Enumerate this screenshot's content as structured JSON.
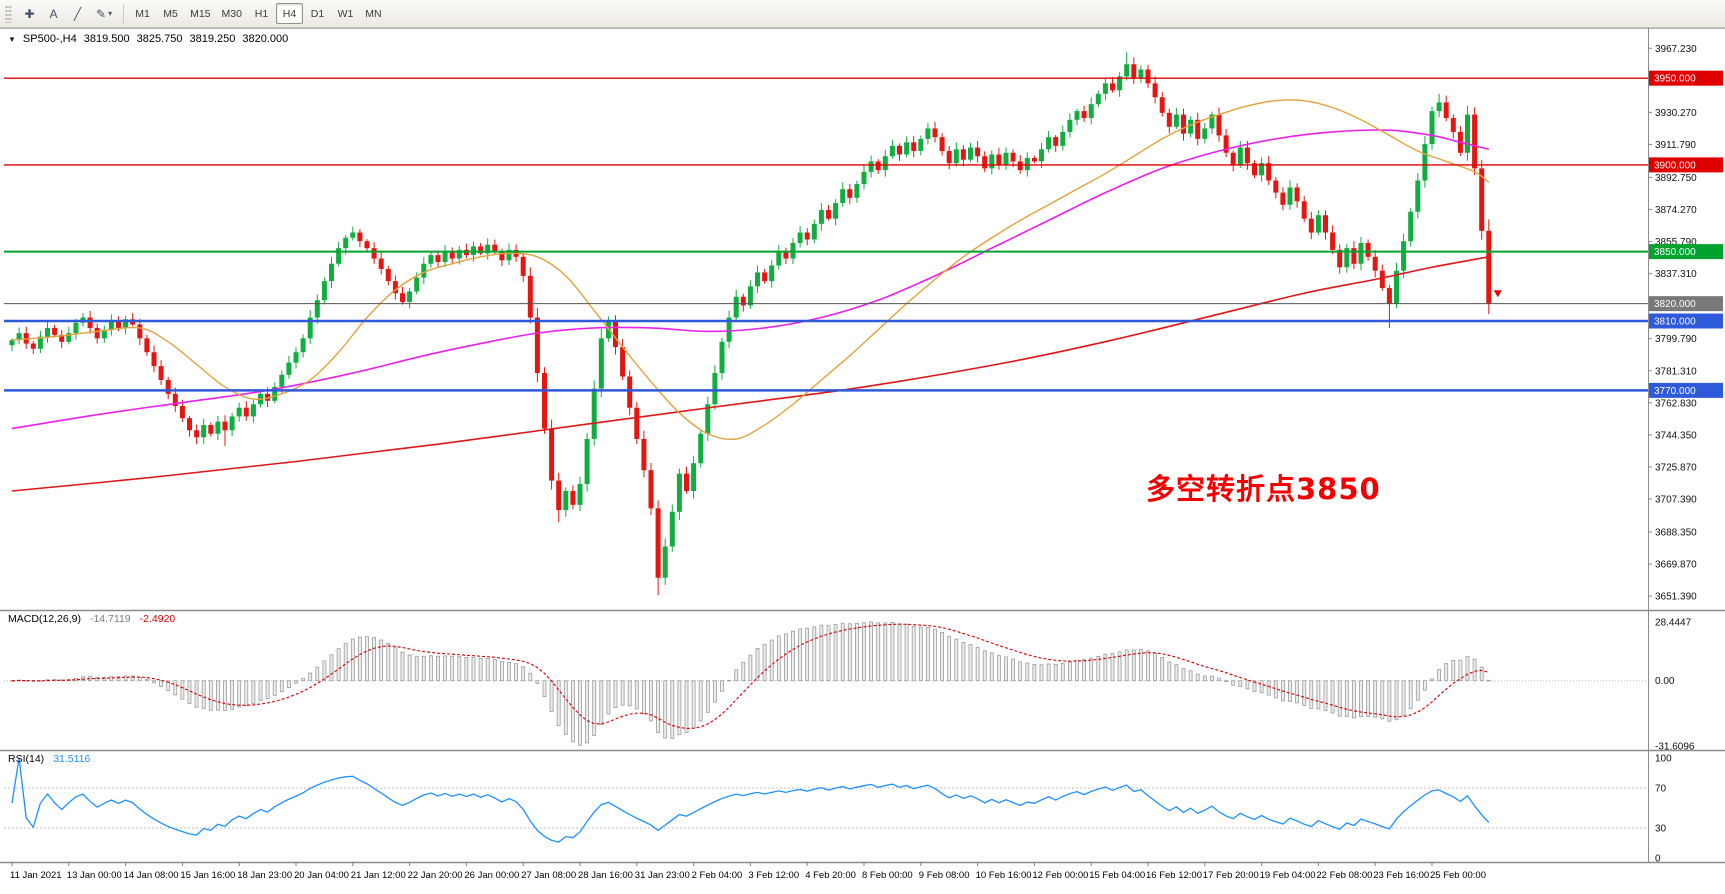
{
  "toolbar": {
    "tools": [
      {
        "glyph": "✚"
      },
      {
        "glyph": "A"
      },
      {
        "glyph": "╱"
      },
      {
        "glyph": "✎"
      }
    ],
    "caret": "▾",
    "timeframes": [
      "M1",
      "M5",
      "M15",
      "M30",
      "H1",
      "H4",
      "D1",
      "W1",
      "MN"
    ],
    "active_timeframe": "H4"
  },
  "chart": {
    "header": {
      "marker": "▼",
      "symbol": "SP500-,H4",
      "open": "3819.500",
      "high": "3825.750",
      "low": "3819.250",
      "close": "3820.000"
    },
    "annotation": {
      "text": "多空转折点3850",
      "color": "#f50000"
    }
  },
  "macd": {
    "name": "MACD(12,26,9)",
    "value_main": "-14.7119",
    "value_signal": "-2.4920",
    "axis_labels": [
      "28.4447",
      "0.00",
      "-31.6096"
    ],
    "axis_max": 28.4447,
    "axis_min": -31.6096,
    "fast": 12,
    "slow": 26,
    "signal": 9,
    "histogram_fill": "#ededed",
    "histogram_stroke": "#9b9b9b",
    "signal_color": "#d40000"
  },
  "rsi": {
    "name": "RSI(14)",
    "value": "31.5116",
    "period": 14,
    "line_color": "#1e90ff",
    "levels": [
      70,
      30
    ],
    "axis_labels": [
      "100",
      "70",
      "30",
      "0"
    ]
  },
  "chart_data": {
    "type": "candlestick",
    "symbol": "SP500-",
    "timeframe": "H4",
    "ohlc_current": {
      "open": 3819.5,
      "high": 3825.75,
      "low": 3819.25,
      "close": 3820.0
    },
    "ylim": [
      3648,
      3972
    ],
    "candle_up": "#0fae3e",
    "candle_down": "#e6150f",
    "first_open": 3796,
    "closes": [
      3799,
      3803,
      3797,
      3794,
      3801,
      3806,
      3802,
      3798,
      3803,
      3809,
      3812,
      3806,
      3800,
      3805,
      3810,
      3806,
      3811,
      3808,
      3800,
      3792,
      3784,
      3776,
      3768,
      3761,
      3754,
      3747,
      3743,
      3750,
      3745,
      3752,
      3747,
      3755,
      3760,
      3755,
      3762,
      3768,
      3764,
      3772,
      3779,
      3786,
      3792,
      3800,
      3812,
      3822,
      3833,
      3843,
      3852,
      3858,
      3861,
      3856,
      3852,
      3846,
      3840,
      3833,
      3826,
      3821,
      3827,
      3835,
      3843,
      3848,
      3844,
      3850,
      3846,
      3851,
      3848,
      3853,
      3849,
      3854,
      3850,
      3845,
      3851,
      3847,
      3836,
      3812,
      3780,
      3748,
      3718,
      3701,
      3712,
      3704,
      3716,
      3742,
      3771,
      3800,
      3810,
      3795,
      3778,
      3760,
      3742,
      3724,
      3702,
      3662,
      3680,
      3700,
      3722,
      3712,
      3728,
      3745,
      3762,
      3780,
      3798,
      3812,
      3824,
      3819,
      3830,
      3838,
      3833,
      3842,
      3850,
      3846,
      3855,
      3861,
      3857,
      3866,
      3874,
      3869,
      3878,
      3886,
      3881,
      3889,
      3896,
      3902,
      3897,
      3905,
      3911,
      3906,
      3913,
      3908,
      3915,
      3921,
      3916,
      3908,
      3901,
      3909,
      3903,
      3910,
      3905,
      3898,
      3906,
      3900,
      3907,
      3902,
      3897,
      3904,
      3902,
      3909,
      3916,
      3911,
      3919,
      3926,
      3931,
      3927,
      3935,
      3941,
      3947,
      3943,
      3951,
      3958,
      3950,
      3955,
      3947,
      3939,
      3930,
      3922,
      3929,
      3918,
      3926,
      3915,
      3921,
      3929,
      3917,
      3907,
      3900,
      3910,
      3901,
      3894,
      3901,
      3891,
      3884,
      3877,
      3887,
      3879,
      3869,
      3861,
      3871,
      3861,
      3851,
      3841,
      3852,
      3843,
      3855,
      3847,
      3839,
      3829,
      3820,
      3839,
      3856,
      3873,
      3891,
      3912,
      3931,
      3936,
      3927,
      3919,
      3907,
      3929,
      3898,
      3862,
      3820
    ],
    "high_overrides": {
      "49": 3863,
      "157": 3965,
      "201": 3941
    },
    "low_overrides": {
      "26": 3739,
      "30": 3738,
      "77": 3694,
      "91": 3652,
      "194": 3806,
      "208": 3814
    },
    "levels": [
      {
        "price": 3950.0,
        "label": "3950.000",
        "color": "#e00000",
        "width": 1.4
      },
      {
        "price": 3900.0,
        "label": "3900.000",
        "color": "#e00000",
        "width": 1.4
      },
      {
        "price": 3850.0,
        "label": "3850.000",
        "color": "#00a32e",
        "width": 2
      },
      {
        "price": 3810.0,
        "label": "3810.000",
        "color": "#2e59d9",
        "width": 2.4
      },
      {
        "price": 3770.0,
        "label": "3770.000",
        "color": "#2e59d9",
        "width": 2.4
      }
    ],
    "current_price": {
      "price": 3820.0,
      "label": "3820.000",
      "line_color": "#555555",
      "tag_color": "#787878",
      "arrow_color": "#e00000"
    },
    "price_ticks": [
      3967.23,
      3930.27,
      3911.79,
      3892.75,
      3874.27,
      3855.79,
      3837.31,
      3799.79,
      3781.31,
      3762.83,
      3744.35,
      3725.87,
      3707.39,
      3688.35,
      3669.87,
      3651.39
    ],
    "time_labels": [
      "11 Jan 2021",
      "13 Jan 00:00",
      "14 Jan 08:00",
      "15 Jan 16:00",
      "18 Jan 23:00",
      "20 Jan 04:00",
      "21 Jan 12:00",
      "22 Jan 20:00",
      "26 Jan 00:00",
      "27 Jan 08:00",
      "28 Jan 16:00",
      "31 Jan 23:00",
      "2 Feb 04:00",
      "3 Feb 12:00",
      "4 Feb 20:00",
      "8 Feb 00:00",
      "9 Feb 08:00",
      "10 Feb 16:00",
      "12 Feb 00:00",
      "15 Feb 04:00",
      "16 Feb 12:00",
      "17 Feb 20:00",
      "19 Feb 04:00",
      "22 Feb 08:00",
      "23 Feb 16:00",
      "25 Feb 00:00"
    ],
    "ma_lines": [
      {
        "name": "ma-long-red",
        "color": "#e01515",
        "width": 1.6,
        "points": [
          [
            0,
            3712
          ],
          [
            20,
            3720
          ],
          [
            40,
            3729
          ],
          [
            60,
            3739
          ],
          [
            80,
            3750
          ],
          [
            100,
            3761
          ],
          [
            120,
            3772
          ],
          [
            140,
            3786
          ],
          [
            155,
            3799
          ],
          [
            170,
            3814
          ],
          [
            182,
            3826
          ],
          [
            192,
            3834
          ],
          [
            200,
            3841
          ],
          [
            208,
            3847
          ]
        ]
      },
      {
        "name": "ma-mid-magenta",
        "color": "#ea1fea",
        "width": 1.6,
        "points": [
          [
            0,
            3748
          ],
          [
            12,
            3756
          ],
          [
            24,
            3763
          ],
          [
            36,
            3770
          ],
          [
            48,
            3780
          ],
          [
            58,
            3790
          ],
          [
            66,
            3797
          ],
          [
            74,
            3803
          ],
          [
            82,
            3806
          ],
          [
            90,
            3806
          ],
          [
            98,
            3804
          ],
          [
            106,
            3806
          ],
          [
            114,
            3812
          ],
          [
            122,
            3822
          ],
          [
            130,
            3836
          ],
          [
            138,
            3852
          ],
          [
            146,
            3868
          ],
          [
            154,
            3884
          ],
          [
            162,
            3898
          ],
          [
            170,
            3908
          ],
          [
            178,
            3915
          ],
          [
            186,
            3919
          ],
          [
            194,
            3920
          ],
          [
            200,
            3917
          ],
          [
            204,
            3913
          ],
          [
            208,
            3909
          ]
        ]
      },
      {
        "name": "ma-fast-orange",
        "color": "#e2a23c",
        "width": 1.4,
        "points": [
          [
            0,
            3799
          ],
          [
            6,
            3801
          ],
          [
            12,
            3804
          ],
          [
            18,
            3806
          ],
          [
            22,
            3798
          ],
          [
            26,
            3785
          ],
          [
            30,
            3772
          ],
          [
            34,
            3765
          ],
          [
            38,
            3768
          ],
          [
            42,
            3776
          ],
          [
            46,
            3792
          ],
          [
            50,
            3812
          ],
          [
            54,
            3828
          ],
          [
            58,
            3838
          ],
          [
            62,
            3843
          ],
          [
            66,
            3847
          ],
          [
            70,
            3849
          ],
          [
            74,
            3847
          ],
          [
            78,
            3836
          ],
          [
            82,
            3816
          ],
          [
            86,
            3795
          ],
          [
            90,
            3775
          ],
          [
            94,
            3757
          ],
          [
            98,
            3745
          ],
          [
            102,
            3742
          ],
          [
            106,
            3750
          ],
          [
            110,
            3762
          ],
          [
            114,
            3776
          ],
          [
            118,
            3790
          ],
          [
            122,
            3805
          ],
          [
            126,
            3820
          ],
          [
            130,
            3834
          ],
          [
            134,
            3847
          ],
          [
            138,
            3858
          ],
          [
            142,
            3868
          ],
          [
            146,
            3877
          ],
          [
            150,
            3886
          ],
          [
            154,
            3895
          ],
          [
            158,
            3905
          ],
          [
            162,
            3915
          ],
          [
            166,
            3923
          ],
          [
            170,
            3929
          ],
          [
            174,
            3934
          ],
          [
            178,
            3937
          ],
          [
            182,
            3937
          ],
          [
            186,
            3933
          ],
          [
            190,
            3926
          ],
          [
            194,
            3917
          ],
          [
            198,
            3908
          ],
          [
            202,
            3902
          ],
          [
            206,
            3896
          ],
          [
            208,
            3890
          ]
        ]
      }
    ]
  }
}
